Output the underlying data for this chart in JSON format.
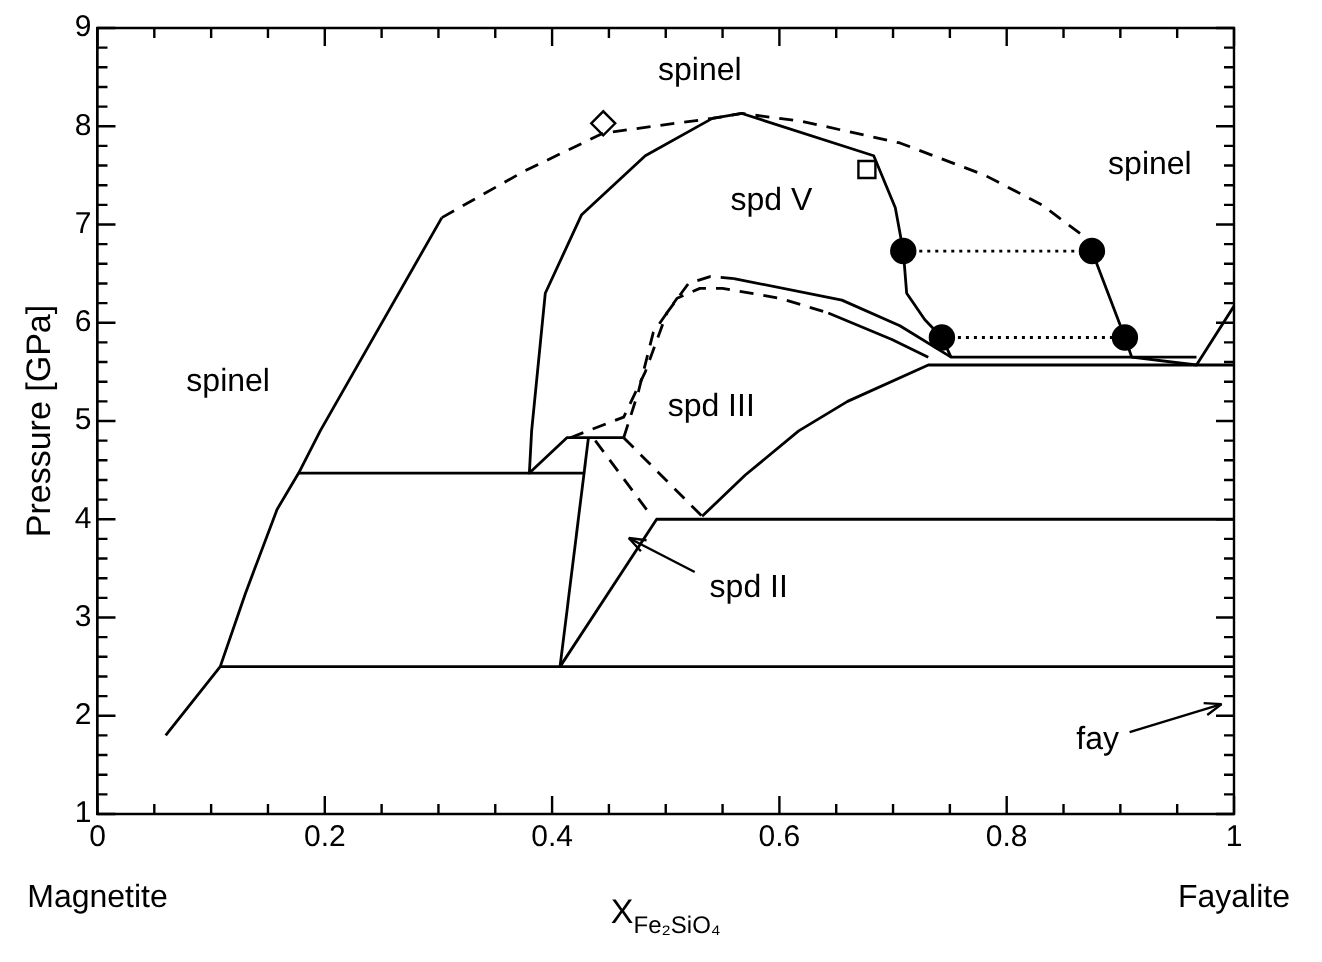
{
  "chart_data": {
    "type": "line",
    "xlabel": "X$_{Fe₂SiO₄}$",
    "ylabel": "Pressure [GPa]",
    "xlim": [
      0,
      1
    ],
    "ylim": [
      1,
      9
    ],
    "xticks": [
      0,
      {
        "value": 0.05,
        "label": null
      },
      {
        "value": 0.1,
        "label": null
      },
      {
        "value": 0.15,
        "label": null
      },
      {
        "value": 0.2,
        "label": "0.2"
      },
      {
        "value": 0.25,
        "label": null
      },
      {
        "value": 0.3,
        "label": null
      },
      {
        "value": 0.35,
        "label": null
      },
      {
        "value": 0.4,
        "label": "0.4"
      },
      {
        "value": 0.45,
        "label": null
      },
      {
        "value": 0.5,
        "label": null
      },
      {
        "value": 0.55,
        "label": null
      },
      {
        "value": 0.6,
        "label": "0.6"
      },
      {
        "value": 0.65,
        "label": null
      },
      {
        "value": 0.7,
        "label": null
      },
      {
        "value": 0.75,
        "label": null
      },
      {
        "value": 0.8,
        "label": "0.8"
      },
      {
        "value": 0.85,
        "label": null
      },
      {
        "value": 0.9,
        "label": null
      },
      {
        "value": 0.95,
        "label": null
      },
      1
    ],
    "yticks": [
      1,
      {
        "value": 1.2,
        "label": null
      },
      {
        "value": 1.4,
        "label": null
      },
      {
        "value": 1.6,
        "label": null
      },
      {
        "value": 1.8,
        "label": null
      },
      2,
      {
        "value": 2.2,
        "label": null
      },
      {
        "value": 2.4,
        "label": null
      },
      {
        "value": 2.6,
        "label": null
      },
      {
        "value": 2.8,
        "label": null
      },
      3,
      {
        "value": 3.2,
        "label": null
      },
      {
        "value": 3.4,
        "label": null
      },
      {
        "value": 3.6,
        "label": null
      },
      {
        "value": 3.8,
        "label": null
      },
      4,
      {
        "value": 4.2,
        "label": null
      },
      {
        "value": 4.4,
        "label": null
      },
      {
        "value": 4.6,
        "label": null
      },
      {
        "value": 4.8,
        "label": null
      },
      5,
      {
        "value": 5.2,
        "label": null
      },
      {
        "value": 5.4,
        "label": null
      },
      {
        "value": 5.6,
        "label": null
      },
      {
        "value": 5.8,
        "label": null
      },
      6,
      {
        "value": 6.2,
        "label": null
      },
      {
        "value": 6.4,
        "label": null
      },
      {
        "value": 6.6,
        "label": null
      },
      {
        "value": 6.8,
        "label": null
      },
      7,
      {
        "value": 7.2,
        "label": null
      },
      {
        "value": 7.4,
        "label": null
      },
      {
        "value": 7.6,
        "label": null
      },
      {
        "value": 7.8,
        "label": null
      },
      8,
      {
        "value": 8.2,
        "label": null
      },
      {
        "value": 8.4,
        "label": null
      },
      {
        "value": 8.6,
        "label": null
      },
      {
        "value": 8.8,
        "label": null
      },
      9
    ],
    "line_style": "solid",
    "legend": false,
    "grid": false,
    "series": [
      {
        "color": "#000000",
        "x": [
          0.06,
          0.108,
          0.13,
          0.158,
          0.177,
          0.196,
          0.303
        ],
        "values": [
          1.8,
          2.5,
          3.24,
          4.1,
          4.47,
          4.9,
          7.07
        ]
      },
      {
        "color": "#000000",
        "line_style": "dashed",
        "x": [
          0.303,
          0.375,
          0.445,
          0.489,
          0.541,
          0.567,
          0.62,
          0.706,
          0.781,
          0.831,
          0.869,
          0.875
        ],
        "values": [
          7.07,
          7.54,
          7.93,
          8.0,
          8.08,
          8.13,
          8.05,
          7.83,
          7.5,
          7.2,
          6.87,
          6.73
        ]
      },
      {
        "color": "#000000",
        "x": [
          0.463,
          0.413,
          0.38,
          0.382,
          0.394,
          0.426,
          0.482,
          0.541,
          0.567,
          0.683,
          0.702,
          0.709,
          0.712,
          0.728,
          0.743,
          0.751,
          0.967
        ],
        "values": [
          4.83,
          4.83,
          4.47,
          4.9,
          6.3,
          7.1,
          7.7,
          8.08,
          8.13,
          7.7,
          7.17,
          6.73,
          6.3,
          6.03,
          5.85,
          5.65,
          5.65
        ]
      },
      {
        "color": "#000000",
        "x": [
          0.875,
          0.904,
          0.91,
          0.967,
          1.0
        ],
        "values": [
          6.73,
          5.85,
          5.65,
          5.57,
          6.17
        ]
      },
      {
        "color": "#000000",
        "line_style": "dotted",
        "x": [
          0.709,
          0.875
        ],
        "values": [
          6.73,
          6.73
        ]
      },
      {
        "color": "#000000",
        "line_style": "dotted",
        "x": [
          0.743,
          0.904
        ],
        "values": [
          5.85,
          5.85
        ]
      },
      {
        "color": "#000000",
        "x": [
          0.177,
          0.429
        ],
        "values": [
          4.47,
          4.47
        ]
      },
      {
        "color": "#000000",
        "x": [
          0.108,
          1.0
        ],
        "values": [
          2.5,
          2.5
        ]
      },
      {
        "color": "#000000",
        "x": [
          0.407,
          0.432
        ],
        "values": [
          2.5,
          4.83
        ]
      },
      {
        "color": "#000000",
        "x": [
          0.407,
          0.492,
          1.0
        ],
        "values": [
          2.5,
          4.0,
          4.0
        ]
      },
      {
        "color": "#000000",
        "line_style": "dashed",
        "x": [
          0.438,
          0.485
        ],
        "values": [
          4.8,
          4.07
        ]
      },
      {
        "color": "#000000",
        "line_style": "dashed",
        "x": [
          0.463,
          0.532
        ],
        "values": [
          4.83,
          4.03
        ]
      },
      {
        "color": "#000000",
        "line_style": "dashed",
        "x": [
          0.416,
          0.463,
          0.482,
          0.501,
          0.52,
          0.539,
          0.56
        ],
        "values": [
          4.83,
          5.04,
          5.5,
          6.1,
          6.4,
          6.47,
          6.45
        ]
      },
      {
        "color": "#000000",
        "x": [
          0.56,
          0.655,
          0.706,
          0.751
        ],
        "values": [
          6.45,
          6.23,
          5.97,
          5.65
        ]
      },
      {
        "color": "#000000",
        "line_style": "dashed",
        "x": [
          0.463,
          0.476,
          0.489,
          0.51,
          0.53,
          0.55,
          0.6,
          0.643
        ],
        "values": [
          4.83,
          5.3,
          5.9,
          6.25,
          6.35,
          6.35,
          6.25,
          6.1
        ]
      },
      {
        "color": "#000000",
        "x": [
          0.643,
          0.699,
          0.731
        ],
        "values": [
          6.1,
          5.83,
          5.65
        ]
      },
      {
        "color": "#000000",
        "x": [
          0.532,
          0.57,
          0.617,
          0.66,
          0.731,
          1.0
        ],
        "values": [
          4.03,
          4.45,
          4.9,
          5.2,
          5.57,
          5.57
        ]
      },
      {
        "type": "scatter",
        "marker": "diamond",
        "color": "#000000",
        "x": [
          0.445
        ],
        "values": [
          8.03
        ]
      },
      {
        "type": "scatter",
        "marker": "square",
        "color": "#000000",
        "x": [
          0.677
        ],
        "values": [
          7.56
        ]
      },
      {
        "type": "scatter",
        "marker": "circle",
        "color": "#000000",
        "x": [
          0.709,
          0.875,
          0.743,
          0.904
        ],
        "values": [
          6.73,
          6.73,
          5.85,
          5.85
        ]
      }
    ],
    "annotations": [
      "spinel",
      "spinel",
      "spinel",
      "spd V",
      "spd III",
      "spd II",
      "fay",
      "Magnetite",
      "Fayalite"
    ]
  }
}
